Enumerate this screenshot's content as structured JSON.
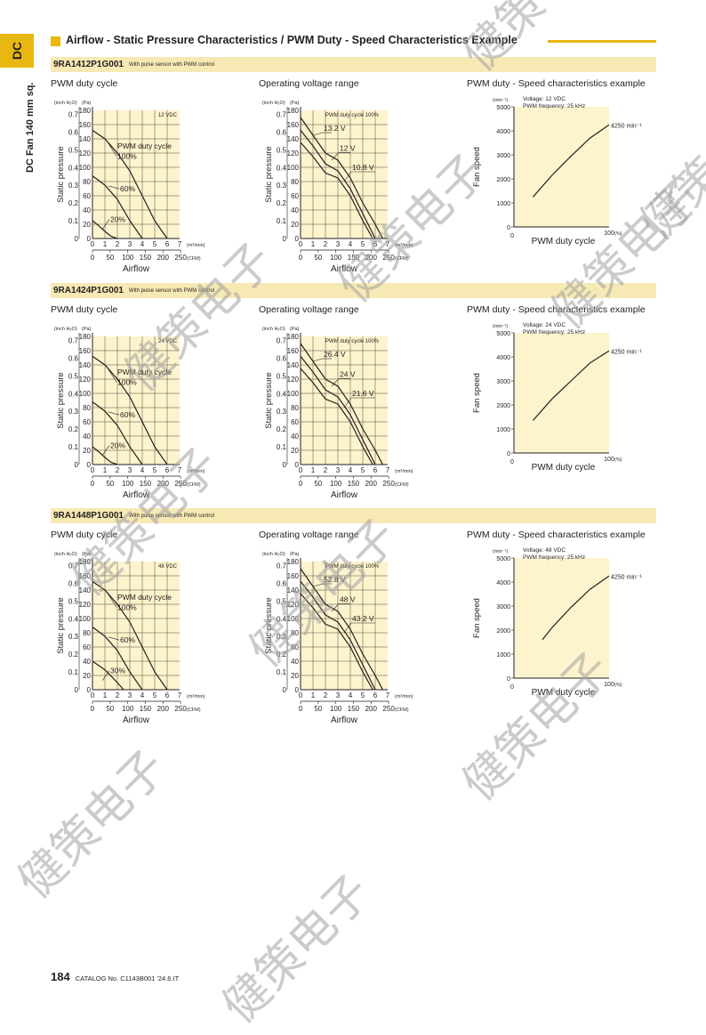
{
  "side_tab": {
    "label": "DC",
    "vertical_label": "DC Fan 140 mm sq."
  },
  "page_title": "Airflow - Static Pressure Characteristics / PWM Duty - Speed Characteristics Example",
  "colors": {
    "accent": "#e8b810",
    "model_bar": "#f7e9b4",
    "chart_bg": "#fdf3cc"
  },
  "sections": [
    {
      "model": "9RA1412P1G001",
      "note": "With pulse sensor with PWM control",
      "titles": [
        "PWM duty cycle",
        "Operating voltage range",
        "PWM duty - Speed characteristics example"
      ],
      "pq1_voltage": "12 VDC",
      "pq1_label": "PWM duty cycle",
      "pq1_curves": [
        "100%",
        "60%",
        "20%"
      ],
      "pq2_header": "PWM duty cycle 100%",
      "pq2_curves": [
        "13.2 V",
        "12 V",
        "10.8 V"
      ],
      "speed_header": [
        "Voltage: 12 VDC",
        "PWM frequency: 25 kHz"
      ],
      "speed_max": "4250 min⁻¹"
    },
    {
      "model": "9RA1424P1G001",
      "note": "With pulse sensor with PWM control",
      "titles": [
        "PWM duty cycle",
        "Operating voltage range",
        "PWM duty - Speed characteristics example"
      ],
      "pq1_voltage": "24 VDC",
      "pq1_label": "PWM duty cycle",
      "pq1_curves": [
        "100%",
        "60%",
        "20%"
      ],
      "pq2_header": "PWM duty cycle 100%",
      "pq2_curves": [
        "26.4 V",
        "24 V",
        "21.6 V"
      ],
      "speed_header": [
        "Voltage: 24 VDC",
        "PWM frequency: 25 kHz"
      ],
      "speed_max": "4250 min⁻¹"
    },
    {
      "model": "9RA1448P1G001",
      "note": "With pulse sensor with PWM control",
      "titles": [
        "PWM duty cycle",
        "Operating voltage range",
        "PWM duty - Speed characteristics example"
      ],
      "pq1_voltage": "48 VDC",
      "pq1_label": "PWM duty cycle",
      "pq1_curves": [
        "100%",
        "60%",
        "30%"
      ],
      "pq2_header": "PWM duty cycle 100%",
      "pq2_curves": [
        "52.8 V",
        "48 V",
        "43.2 V"
      ],
      "speed_header": [
        "Voltage: 48 VDC",
        "PWM frequency: 25 kHz"
      ],
      "speed_max": "4250 min⁻¹"
    }
  ],
  "axes": {
    "pq_y_pa": [
      "0",
      "20",
      "40",
      "60",
      "80",
      "100",
      "120",
      "140",
      "160",
      "180"
    ],
    "pq_y_inch": [
      "0",
      "0.1",
      "0.2",
      "0.3",
      "0.4",
      "0.5",
      "0.6",
      "0.7"
    ],
    "pq_y_unit_inch": "(inch H₂O)",
    "pq_y_unit_pa": "(Pa)",
    "pq_y_label": "Static pressure",
    "pq_x_m3": [
      "0",
      "1",
      "2",
      "3",
      "4",
      "5",
      "6",
      "7"
    ],
    "pq_x_cfm": [
      "0",
      "50",
      "100",
      "150",
      "200",
      "250"
    ],
    "pq_x_unit_m3": "(m³/min)",
    "pq_x_unit_cfm": "(CFM)",
    "pq_x_label": "Airflow",
    "speed_y": [
      "0",
      "1000",
      "2000",
      "3000",
      "4000",
      "5000"
    ],
    "speed_y_unit": "(min⁻¹)",
    "speed_y_label": "Fan speed",
    "speed_x": [
      "0",
      "100"
    ],
    "speed_x_unit": "(%)",
    "speed_x_label": "PWM duty cycle"
  },
  "chart_data": [
    {
      "type": "line",
      "chart": "9RA1412P1G001 PWM duty cycle",
      "xlabel": "Airflow",
      "ylabel": "Static pressure",
      "xlim": [
        0,
        7
      ],
      "ylim": [
        0,
        180
      ],
      "series": [
        {
          "name": "100%",
          "x": [
            0,
            1,
            2,
            3,
            4,
            5,
            6
          ],
          "y": [
            152,
            140,
            120,
            95,
            60,
            25,
            0
          ]
        },
        {
          "name": "60%",
          "x": [
            0,
            1,
            2,
            3,
            4
          ],
          "y": [
            88,
            75,
            55,
            25,
            0
          ]
        },
        {
          "name": "20%",
          "x": [
            0,
            0.5,
            1,
            1.5,
            2
          ],
          "y": [
            25,
            18,
            10,
            3,
            0
          ]
        }
      ]
    },
    {
      "type": "line",
      "chart": "9RA1412P1G001 Operating voltage range",
      "xlabel": "Airflow",
      "ylabel": "Static pressure",
      "xlim": [
        0,
        7
      ],
      "ylim": [
        0,
        180
      ],
      "series": [
        {
          "name": "13.2 V",
          "x": [
            0,
            1,
            2,
            3,
            4,
            5,
            6,
            6.6
          ],
          "y": [
            170,
            145,
            120,
            110,
            85,
            50,
            20,
            0
          ]
        },
        {
          "name": "12 V",
          "x": [
            0,
            1,
            2,
            3,
            4,
            5,
            6
          ],
          "y": [
            152,
            130,
            105,
            95,
            70,
            35,
            0
          ]
        },
        {
          "name": "10.8 V",
          "x": [
            0,
            1,
            2,
            3,
            4,
            5,
            5.8
          ],
          "y": [
            135,
            115,
            92,
            85,
            60,
            25,
            0
          ]
        }
      ]
    },
    {
      "type": "line",
      "chart": "9RA1412P1G001 PWM duty - Speed",
      "xlabel": "PWM duty cycle",
      "ylabel": "Fan speed",
      "xlim": [
        0,
        100
      ],
      "ylim": [
        0,
        5000
      ],
      "series": [
        {
          "name": "12 VDC",
          "x": [
            20,
            40,
            60,
            80,
            100
          ],
          "y": [
            1250,
            2150,
            2950,
            3700,
            4250
          ]
        }
      ]
    },
    {
      "type": "line",
      "chart": "9RA1424P1G001 PWM duty cycle",
      "xlabel": "Airflow",
      "ylabel": "Static pressure",
      "xlim": [
        0,
        7
      ],
      "ylim": [
        0,
        180
      ],
      "series": [
        {
          "name": "100%",
          "x": [
            0,
            1,
            2,
            3,
            4,
            5,
            6
          ],
          "y": [
            152,
            140,
            120,
            95,
            60,
            25,
            0
          ]
        },
        {
          "name": "60%",
          "x": [
            0,
            1,
            2,
            3,
            4
          ],
          "y": [
            88,
            75,
            55,
            25,
            0
          ]
        },
        {
          "name": "20%",
          "x": [
            0,
            0.5,
            1,
            1.5,
            2
          ],
          "y": [
            25,
            18,
            10,
            3,
            0
          ]
        }
      ]
    },
    {
      "type": "line",
      "chart": "9RA1424P1G001 Operating voltage range",
      "xlabel": "Airflow",
      "ylabel": "Static pressure",
      "xlim": [
        0,
        7
      ],
      "ylim": [
        0,
        180
      ],
      "series": [
        {
          "name": "26.4 V",
          "x": [
            0,
            1,
            2,
            3,
            4,
            5,
            6,
            6.6
          ],
          "y": [
            170,
            145,
            120,
            110,
            85,
            50,
            20,
            0
          ]
        },
        {
          "name": "24 V",
          "x": [
            0,
            1,
            2,
            3,
            4,
            5,
            6
          ],
          "y": [
            152,
            130,
            105,
            95,
            70,
            35,
            0
          ]
        },
        {
          "name": "21.6 V",
          "x": [
            0,
            1,
            2,
            3,
            4,
            5,
            5.8
          ],
          "y": [
            135,
            115,
            92,
            85,
            60,
            25,
            0
          ]
        }
      ]
    },
    {
      "type": "line",
      "chart": "9RA1424P1G001 PWM duty - Speed",
      "xlabel": "PWM duty cycle",
      "ylabel": "Fan speed",
      "xlim": [
        0,
        100
      ],
      "ylim": [
        0,
        5000
      ],
      "series": [
        {
          "name": "24 VDC",
          "x": [
            20,
            40,
            60,
            80,
            100
          ],
          "y": [
            1350,
            2250,
            3000,
            3750,
            4250
          ]
        }
      ]
    },
    {
      "type": "line",
      "chart": "9RA1448P1G001 PWM duty cycle",
      "xlabel": "Airflow",
      "ylabel": "Static pressure",
      "xlim": [
        0,
        7
      ],
      "ylim": [
        0,
        180
      ],
      "series": [
        {
          "name": "100%",
          "x": [
            0,
            1,
            2,
            3,
            4,
            5,
            6
          ],
          "y": [
            152,
            140,
            120,
            95,
            60,
            25,
            0
          ]
        },
        {
          "name": "60%",
          "x": [
            0,
            1,
            2,
            3,
            4
          ],
          "y": [
            88,
            75,
            55,
            25,
            0
          ]
        },
        {
          "name": "30%",
          "x": [
            0,
            1,
            2,
            2.5
          ],
          "y": [
            40,
            28,
            10,
            0
          ]
        }
      ]
    },
    {
      "type": "line",
      "chart": "9RA1448P1G001 Operating voltage range",
      "xlabel": "Airflow",
      "ylabel": "Static pressure",
      "xlim": [
        0,
        7
      ],
      "ylim": [
        0,
        180
      ],
      "series": [
        {
          "name": "52.8 V",
          "x": [
            0,
            1,
            2,
            3,
            4,
            5,
            6,
            6.6
          ],
          "y": [
            170,
            145,
            120,
            110,
            85,
            50,
            20,
            0
          ]
        },
        {
          "name": "48 V",
          "x": [
            0,
            1,
            2,
            3,
            4,
            5,
            6
          ],
          "y": [
            152,
            130,
            105,
            95,
            70,
            35,
            0
          ]
        },
        {
          "name": "43.2 V",
          "x": [
            0,
            1,
            2,
            3,
            4,
            5,
            5.8
          ],
          "y": [
            135,
            115,
            92,
            85,
            60,
            25,
            0
          ]
        }
      ]
    },
    {
      "type": "line",
      "chart": "9RA1448P1G001 PWM duty - Speed",
      "xlabel": "PWM duty cycle",
      "ylabel": "Fan speed",
      "xlim": [
        0,
        100
      ],
      "ylim": [
        0,
        5000
      ],
      "series": [
        {
          "name": "48 VDC",
          "x": [
            30,
            40,
            60,
            80,
            100
          ],
          "y": [
            1600,
            2100,
            2950,
            3700,
            4250
          ]
        }
      ]
    }
  ],
  "footer": {
    "page_number": "184",
    "catalog": "CATALOG No. C1143B001 '24.6.IT"
  },
  "watermark": "健策电子"
}
